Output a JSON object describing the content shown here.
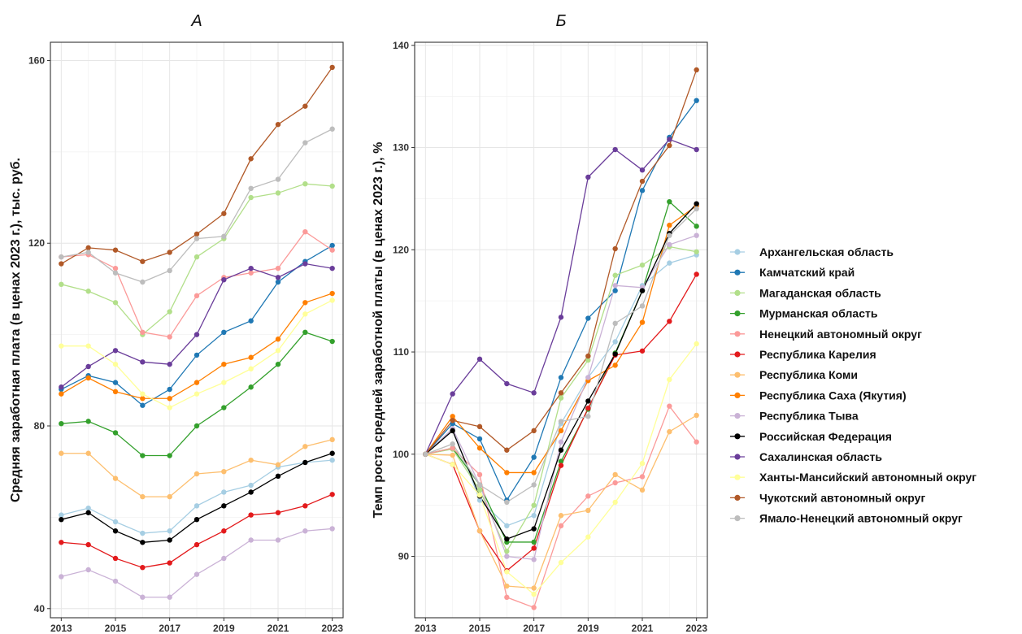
{
  "chart_data": [
    {
      "type": "line",
      "title": "А",
      "xlabel": "",
      "ylabel": "Средняя заработная плата (в ценах 2023 г.), тыс. руб.",
      "x": [
        2013,
        2014,
        2015,
        2016,
        2017,
        2018,
        2019,
        2020,
        2021,
        2022,
        2023
      ],
      "xticks": [
        2013,
        2015,
        2017,
        2019,
        2021,
        2023
      ],
      "yticks": [
        40,
        80,
        120,
        160
      ],
      "xlim": [
        2012.6,
        2023.4
      ],
      "ylim": [
        38,
        164
      ],
      "grid": true,
      "series": [
        {
          "name": "Архангельская область",
          "color": "#a6cee3",
          "values": [
            60.5,
            62.0,
            59.0,
            56.5,
            57.0,
            62.5,
            65.5,
            67.0,
            71.0,
            72.0,
            72.5
          ]
        },
        {
          "name": "Камчатский край",
          "color": "#1f78b4",
          "values": [
            88.0,
            91.0,
            89.5,
            84.5,
            88.0,
            95.5,
            100.5,
            103.0,
            111.5,
            116.0,
            119.5
          ]
        },
        {
          "name": "Магаданская область",
          "color": "#b2df8a",
          "values": [
            111.0,
            109.5,
            107.0,
            100.0,
            105.0,
            117.0,
            121.0,
            130.0,
            131.0,
            133.0,
            132.5
          ]
        },
        {
          "name": "Мурманская область",
          "color": "#33a02c",
          "values": [
            80.5,
            81.0,
            78.5,
            73.5,
            73.5,
            80.0,
            84.0,
            88.5,
            93.5,
            100.5,
            98.5
          ]
        },
        {
          "name": "Ненецкий автономный округ",
          "color": "#fb9a99",
          "values": [
            117.0,
            117.5,
            114.5,
            100.5,
            99.5,
            108.5,
            112.5,
            113.5,
            114.5,
            122.5,
            118.5
          ]
        },
        {
          "name": "Республика Карелия",
          "color": "#e31a1c",
          "values": [
            54.5,
            54.0,
            51.0,
            49.0,
            50.0,
            54.0,
            57.0,
            60.5,
            61.0,
            62.5,
            65.0
          ]
        },
        {
          "name": "Республика Коми",
          "color": "#fdbf6f",
          "values": [
            74.0,
            74.0,
            68.5,
            64.5,
            64.5,
            69.5,
            70.0,
            72.5,
            71.5,
            75.5,
            77.0
          ]
        },
        {
          "name": "Республика Саха (Якутия)",
          "color": "#ff7f00",
          "values": [
            87.0,
            90.5,
            87.5,
            86.0,
            86.0,
            89.5,
            93.5,
            95.0,
            99.0,
            107.0,
            109.0
          ]
        },
        {
          "name": "Республика Тыва",
          "color": "#cab2d6",
          "values": [
            47.0,
            48.5,
            46.0,
            42.5,
            42.5,
            47.5,
            51.0,
            55.0,
            55.0,
            57.0,
            57.5
          ]
        },
        {
          "name": "Российская Федерация",
          "color": "#000000",
          "values": [
            59.5,
            61.0,
            57.0,
            54.5,
            55.0,
            59.5,
            62.5,
            65.5,
            69.0,
            72.0,
            74.0
          ]
        },
        {
          "name": "Сахалинская область",
          "color": "#6a3d9a",
          "values": [
            88.5,
            93.0,
            96.5,
            94.0,
            93.5,
            100.0,
            112.0,
            114.5,
            112.5,
            115.5,
            114.5
          ]
        },
        {
          "name": "Ханты-Мансийский автономный округ",
          "color": "#ffff99",
          "values": [
            97.5,
            97.5,
            93.5,
            87.0,
            84.0,
            87.0,
            89.5,
            92.5,
            96.5,
            104.5,
            107.5
          ]
        },
        {
          "name": "Чукотский автономный округ",
          "color": "#b15928",
          "values": [
            115.5,
            119.0,
            118.5,
            116.0,
            118.0,
            122.0,
            126.5,
            138.5,
            146.0,
            150.0,
            158.5
          ]
        },
        {
          "name": "Ямало-Ненецкий автономный округ",
          "color": "#bdbdbd",
          "values": [
            117.0,
            118.0,
            113.5,
            111.5,
            114.0,
            121.0,
            121.5,
            132.0,
            134.0,
            142.0,
            145.0
          ]
        }
      ]
    },
    {
      "type": "line",
      "title": "Б",
      "xlabel": "",
      "ylabel": "Темп роста средней заработной платы (в ценах 2023 г.), %",
      "x": [
        2013,
        2014,
        2015,
        2016,
        2017,
        2018,
        2019,
        2020,
        2021,
        2022,
        2023
      ],
      "xticks": [
        2013,
        2015,
        2017,
        2019,
        2021,
        2023
      ],
      "yticks": [
        90,
        100,
        110,
        120,
        130,
        140
      ],
      "xlim": [
        2012.6,
        2023.4
      ],
      "ylim": [
        84,
        140.3
      ],
      "grid": true,
      "series": [
        {
          "name": "Архангельская область",
          "color": "#a6cee3",
          "values": [
            100.0,
            102.5,
            95.5,
            93.0,
            94.0,
            103.0,
            107.5,
            111.0,
            116.5,
            118.7,
            119.5
          ]
        },
        {
          "name": "Камчатский край",
          "color": "#1f78b4",
          "values": [
            100.0,
            103.0,
            101.5,
            95.5,
            99.7,
            107.5,
            113.3,
            116.0,
            125.8,
            131.0,
            134.6
          ]
        },
        {
          "name": "Магаданская область",
          "color": "#b2df8a",
          "values": [
            100.0,
            100.5,
            96.5,
            90.5,
            95.0,
            105.5,
            109.2,
            117.5,
            118.5,
            120.3,
            119.8
          ]
        },
        {
          "name": "Мурманская область",
          "color": "#33a02c",
          "values": [
            100.0,
            100.6,
            97.0,
            91.4,
            91.4,
            99.3,
            104.4,
            109.9,
            116.0,
            124.7,
            122.3
          ]
        },
        {
          "name": "Ненецкий автономный округ",
          "color": "#fb9a99",
          "values": [
            100.0,
            100.6,
            98.0,
            86.0,
            85.0,
            93.0,
            95.9,
            97.2,
            97.8,
            104.7,
            101.2
          ]
        },
        {
          "name": "Республика Карелия",
          "color": "#e31a1c",
          "values": [
            100.0,
            99.0,
            92.5,
            88.6,
            90.8,
            98.9,
            104.5,
            109.7,
            110.1,
            113.0,
            117.6
          ]
        },
        {
          "name": "Республика Коми",
          "color": "#fdbf6f",
          "values": [
            100.0,
            99.9,
            92.5,
            87.1,
            86.9,
            94.0,
            94.5,
            98.0,
            96.5,
            102.2,
            103.8
          ]
        },
        {
          "name": "Республика Саха (Якутия)",
          "color": "#ff7f00",
          "values": [
            100.0,
            103.7,
            100.6,
            98.2,
            98.2,
            102.3,
            107.2,
            108.7,
            112.9,
            122.4,
            124.3
          ]
        },
        {
          "name": "Республика Тыва",
          "color": "#cab2d6",
          "values": [
            100.0,
            102.5,
            97.0,
            90.0,
            89.7,
            101.2,
            107.5,
            116.5,
            116.3,
            120.5,
            121.4
          ]
        },
        {
          "name": "Российская Федерация",
          "color": "#000000",
          "values": [
            100.0,
            102.3,
            95.9,
            91.7,
            92.7,
            100.4,
            105.2,
            109.8,
            116.0,
            121.6,
            124.5
          ]
        },
        {
          "name": "Сахалинская область",
          "color": "#6a3d9a",
          "values": [
            100.0,
            105.9,
            109.3,
            106.9,
            106.0,
            113.4,
            127.1,
            129.8,
            127.8,
            130.8,
            129.8
          ]
        },
        {
          "name": "Ханты-Мансийский автономный округ",
          "color": "#ffff99",
          "values": [
            100.0,
            99.0,
            96.0,
            88.5,
            86.3,
            89.4,
            91.9,
            95.3,
            99.1,
            107.3,
            110.8
          ]
        },
        {
          "name": "Чукотский автономный округ",
          "color": "#b15928",
          "values": [
            100.0,
            103.3,
            102.7,
            100.4,
            102.3,
            106.0,
            109.6,
            120.1,
            126.7,
            130.2,
            137.6
          ]
        },
        {
          "name": "Ямало-Ненецкий автономный округ",
          "color": "#bdbdbd",
          "values": [
            100.0,
            101.0,
            97.0,
            95.3,
            97.0,
            103.2,
            103.7,
            112.8,
            114.5,
            121.4,
            124.0
          ]
        }
      ]
    }
  ]
}
